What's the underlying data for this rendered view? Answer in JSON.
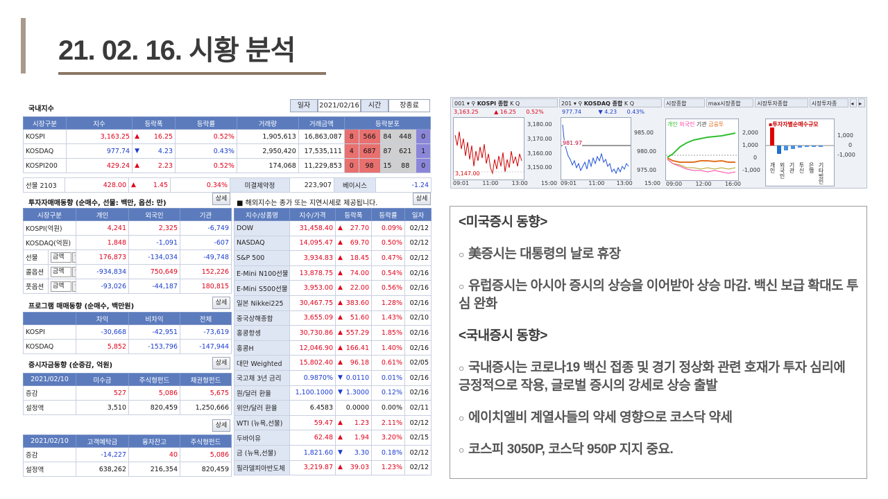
{
  "title": "21. 02. 16. 시황 분석",
  "domestic": {
    "section_title": "국내지수",
    "date_label": "일자",
    "date_value": "2021/02/16",
    "time_label": "시간",
    "time_value": "장종료",
    "headers": [
      "시장구분",
      "지수",
      "등락폭",
      "등락률",
      "거래량",
      "거래금액",
      "등락분포"
    ],
    "rows": [
      {
        "name": "KOSPI",
        "index": "3,163.25",
        "dir": "up",
        "chg": "16.25",
        "rate": "0.52%",
        "vol": "1,905,613",
        "amt": "16,863,087",
        "d1": "8",
        "d2": "566",
        "d3": "84",
        "d4": "448",
        "d5": "0"
      },
      {
        "name": "KOSDAQ",
        "index": "977.74",
        "dir": "dn",
        "chg": "4.23",
        "rate": "0.43%",
        "vol": "2,950,420",
        "amt": "17,535,111",
        "d1": "4",
        "d2": "687",
        "d3": "87",
        "d4": "621",
        "d5": "1"
      },
      {
        "name": "KOSPI200",
        "index": "429.24",
        "dir": "up",
        "chg": "2.23",
        "rate": "0.52%",
        "vol": "174,068",
        "amt": "11,229,853",
        "d1": "0",
        "d2": "98",
        "d3": "15",
        "d4": "88",
        "d5": "0"
      }
    ],
    "futures": {
      "name": "선물 2103",
      "index": "428.00",
      "chg": "1.45",
      "rate": "0.34%",
      "oi_label": "미결제약정",
      "oi_value": "223,907",
      "basis_label": "베이시스",
      "basis_value": "-1.24"
    }
  },
  "investor": {
    "section_title": "투자자매매동향 (순매수, 선물: 백만, 옵션: 만)",
    "detail": "상세",
    "headers": [
      "시장구분",
      "개인",
      "외국인",
      "기관"
    ],
    "rows": [
      {
        "name": "KOSPI(억원)",
        "ind": "4,241",
        "frn": "2,325",
        "ins": "-6,749"
      },
      {
        "name": "KOSDAQ(억원)",
        "ind": "1,848",
        "frn": "-1,091",
        "ins": "-607"
      },
      {
        "name": "선물",
        "sel": "금액",
        "ind": "176,873",
        "frn": "-134,034",
        "ins": "-49,748"
      },
      {
        "name": "콜옵션",
        "sel": "금액",
        "ind": "-934,834",
        "frn": "750,649",
        "ins": "152,226"
      },
      {
        "name": "풋옵션",
        "sel": "금액",
        "ind": "-93,026",
        "frn": "-44,187",
        "ins": "180,815"
      }
    ]
  },
  "program": {
    "section_title": "프로그램 매매동향 (순매수, 백만원)",
    "detail": "상세",
    "headers": [
      "",
      "차익",
      "비차익",
      "전체"
    ],
    "rows": [
      {
        "name": "KOSPI",
        "a": "-30,668",
        "b": "-42,951",
        "c": "-73,619"
      },
      {
        "name": "KOSDAQ",
        "a": "5,852",
        "b": "-153,796",
        "c": "-147,944"
      }
    ]
  },
  "funds": {
    "section_title": "증시자금동향 (순증감, 억원)",
    "detail": "상세",
    "headers": [
      "2021/02/10",
      "미수금",
      "주식형펀드",
      "채권형펀드"
    ],
    "rows": [
      {
        "name": "증감",
        "a": "527",
        "b": "5,086",
        "c": "5,675"
      },
      {
        "name": "설정액",
        "a": "3,510",
        "b": "820,459",
        "c": "1,250,666"
      }
    ]
  },
  "funds2": {
    "detail": "상세",
    "headers": [
      "2021/02/10",
      "고객예탁금",
      "융자잔고",
      "주식형펀드"
    ],
    "rows": [
      {
        "name": "증감",
        "a": "-14,227",
        "b": "40",
        "c": "5,086"
      },
      {
        "name": "설정액",
        "a": "638,262",
        "b": "216,354",
        "c": "820,459"
      }
    ]
  },
  "overseas": {
    "note": "■ 해외지수는 종가 또는 지연시세로 제공됩니다.",
    "detail": "상세",
    "headers": [
      "지수/상품명",
      "지수/가격",
      "등락폭",
      "등락률",
      "일자"
    ],
    "rows": [
      {
        "name": "DOW",
        "price": "31,458.40",
        "dir": "up",
        "chg": "27.70",
        "rate": "0.09%",
        "date": "02/12"
      },
      {
        "name": "NASDAQ",
        "price": "14,095.47",
        "dir": "up",
        "chg": "69.70",
        "rate": "0.50%",
        "date": "02/12"
      },
      {
        "name": "S&P 500",
        "price": "3,934.83",
        "dir": "up",
        "chg": "18.45",
        "rate": "0.47%",
        "date": "02/12"
      },
      {
        "name": "E-Mini N100선물",
        "price": "13,878.75",
        "dir": "up",
        "chg": "74.00",
        "rate": "0.54%",
        "date": "02/16"
      },
      {
        "name": "E-Mini S500선물",
        "price": "3,953.00",
        "dir": "up",
        "chg": "22.00",
        "rate": "0.56%",
        "date": "02/16"
      },
      {
        "name": "일본 Nikkei225",
        "price": "30,467.75",
        "dir": "up",
        "chg": "383.60",
        "rate": "1.28%",
        "date": "02/16"
      },
      {
        "name": "중국상해종합",
        "price": "3,655.09",
        "dir": "up",
        "chg": "51.60",
        "rate": "1.43%",
        "date": "02/10"
      },
      {
        "name": "홍콩항셍",
        "price": "30,730.86",
        "dir": "up",
        "chg": "557.29",
        "rate": "1.85%",
        "date": "02/16"
      },
      {
        "name": "홍콩H",
        "price": "12,046.90",
        "dir": "up",
        "chg": "166.41",
        "rate": "1.40%",
        "date": "02/16"
      },
      {
        "name": "대만 Weighted",
        "price": "15,802.40",
        "dir": "up",
        "chg": "96.18",
        "rate": "0.61%",
        "date": "02/05"
      },
      {
        "name": "국고채 3년 금리",
        "price": "0.9870%",
        "dir": "dn",
        "chg": "0.0110",
        "rate": "0.01%",
        "date": "02/16"
      },
      {
        "name": "원/달러 환율",
        "price": "1,100.1000",
        "dir": "dn",
        "chg": "1.3000",
        "rate": "0.12%",
        "date": "02/16"
      },
      {
        "name": "위안/달러 환율",
        "price": "6.4583",
        "dir": "none",
        "chg": "0.0000",
        "rate": "0.00%",
        "date": "02/11"
      },
      {
        "name": "WTI (뉴욕,선물)",
        "price": "59.47",
        "dir": "up",
        "chg": "1.23",
        "rate": "2.11%",
        "date": "02/12"
      },
      {
        "name": "두바이유",
        "price": "62.48",
        "dir": "up",
        "chg": "1.94",
        "rate": "3.20%",
        "date": "02/15"
      },
      {
        "name": "금 (뉴욕,선물)",
        "price": "1,821.60",
        "dir": "dn",
        "chg": "3.30",
        "rate": "0.18%",
        "date": "02/12"
      },
      {
        "name": "필라델피아반도체",
        "price": "3,219.87",
        "dir": "up",
        "chg": "39.03",
        "rate": "1.23%",
        "date": "02/12"
      }
    ]
  },
  "charts": {
    "kospi": {
      "code": "001",
      "name": "KOSPI 종합",
      "btn1": "K",
      "btn2": "Q",
      "price": "3,163.25",
      "chg": "16.25",
      "rate": "0.52%",
      "y_ticks": [
        "3,180.00",
        "3,170.00",
        "3,160.00",
        "3,150.00"
      ],
      "x_ticks": [
        "09:01",
        "11:00",
        "13:00",
        "15:00"
      ],
      "low": "3,147.00"
    },
    "kosdaq": {
      "code": "201",
      "name": "KOSDAQ 종합",
      "btn1": "K",
      "btn2": "Q",
      "price": "977.74",
      "chg": "4.23",
      "rate": "0.43%",
      "y_ticks": [
        "985.00",
        "980.00",
        "975.00"
      ],
      "x_ticks": [
        "09:01",
        "11:00",
        "13:00",
        "15:00"
      ],
      "mark": "981.97"
    },
    "tabs": [
      "시장종합",
      "max시장종합",
      "시장투자종합",
      "시장투자종"
    ],
    "inv": {
      "legend": [
        "개인",
        "외국인",
        "기관",
        "금융투"
      ],
      "y_ticks": [
        "2,000",
        "1,000",
        "0",
        "-1,000"
      ],
      "x_ticks": [
        "09:00",
        "12:00",
        "16:00"
      ]
    },
    "bar": {
      "title": "투자자별순매수규모",
      "y_ticks": [
        "1,000",
        "0",
        "-1,000"
      ],
      "x_labels": [
        "개인",
        "외국인",
        "기관",
        "투신",
        "은행",
        "기타법인"
      ]
    }
  },
  "notes": [
    {
      "type": "h",
      "text": "<미국증시 동향>"
    },
    {
      "type": "b",
      "text": "美증시는 대통령의 날로 휴장"
    },
    {
      "type": "b",
      "text": "유럽증시는 아시아 증시의 상승을 이어받아 상승 마감. 백신 보급 확대도 투심 완화"
    },
    {
      "type": "h",
      "text": "<국내증시 동향>"
    },
    {
      "type": "b",
      "text": "국내증시는 코로나19 백신 접종 및 경기 정상화 관련 호재가 투자 심리에 긍정적으로 작용, 글로벌 증시의 강세로 상승 출발"
    },
    {
      "type": "b",
      "text": "에이치엘비 계열사들의 약세 영향으로 코스닥 약세"
    },
    {
      "type": "b",
      "text": "코스피 3050P, 코스닥 950P 지지 중요."
    }
  ],
  "colors": {
    "accent": "#a89a8c",
    "rule": "#8b7665",
    "header_blue": "#5b7bbd",
    "up": "#e0001a",
    "down": "#1a3ccf"
  }
}
